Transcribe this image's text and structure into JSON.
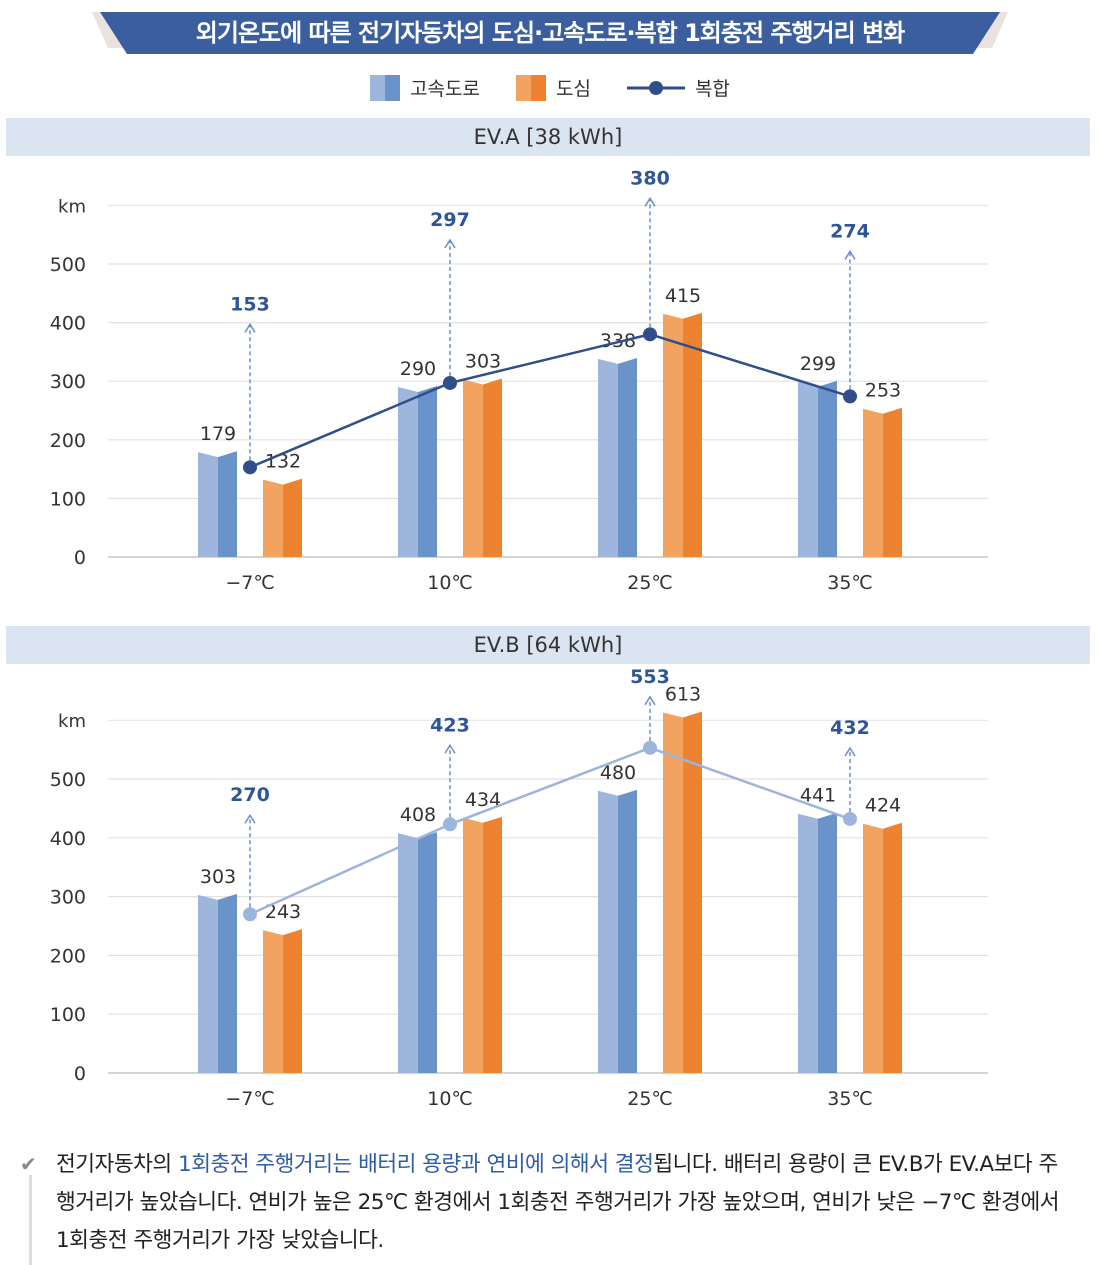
{
  "title": "외기온도에 따른 전기자동차의 도심·고속도로·복합 1회충전 주행거리 변화",
  "legend": {
    "highway": "고속도로",
    "city": "도심",
    "combined": "복합"
  },
  "colors": {
    "banner": "#3b5f9e",
    "highway_light": "#9fb6dc",
    "highway_dark": "#6a93c9",
    "city_light": "#f2a35f",
    "city_dark": "#ed8330",
    "combined_a": "#2f4e8a",
    "combined_b": "#9db4dc",
    "combined_label": "#2f5597"
  },
  "chart_data": [
    {
      "type": "bar",
      "title": "EV.A [38 kWh]",
      "ylabel": "km",
      "ylim": [
        0,
        600
      ],
      "yticks": [
        0,
        100,
        200,
        300,
        400,
        500
      ],
      "categories": [
        "−7℃",
        "10℃",
        "25℃",
        "35℃"
      ],
      "series": [
        {
          "name": "고속도로",
          "values": [
            179,
            290,
            338,
            299
          ]
        },
        {
          "name": "도심",
          "values": [
            132,
            303,
            415,
            253
          ]
        },
        {
          "name": "복합",
          "type": "line",
          "values": [
            153,
            297,
            380,
            274
          ]
        }
      ]
    },
    {
      "type": "bar",
      "title": "EV.B [64 kWh]",
      "ylabel": "km",
      "ylim": [
        0,
        600
      ],
      "yticks": [
        0,
        100,
        200,
        300,
        400,
        500
      ],
      "categories": [
        "−7℃",
        "10℃",
        "25℃",
        "35℃"
      ],
      "series": [
        {
          "name": "고속도로",
          "values": [
            303,
            408,
            480,
            441
          ]
        },
        {
          "name": "도심",
          "values": [
            243,
            434,
            613,
            424
          ]
        },
        {
          "name": "복합",
          "type": "line",
          "values": [
            270,
            423,
            553,
            432
          ]
        }
      ]
    }
  ],
  "note": {
    "pre": "전기자동차의 ",
    "highlight": "1회충전 주행거리는 배터리 용량과 연비에 의해서 결정",
    "post": "됩니다. 배터리 용량이 큰 EV.B가 EV.A보다 주행거리가 높았습니다. 연비가 높은 25℃ 환경에서 1회충전 주행거리가 가장 높았으며, 연비가 낮은 −7℃ 환경에서 1회충전 주행거리가 가장 낮았습니다."
  }
}
